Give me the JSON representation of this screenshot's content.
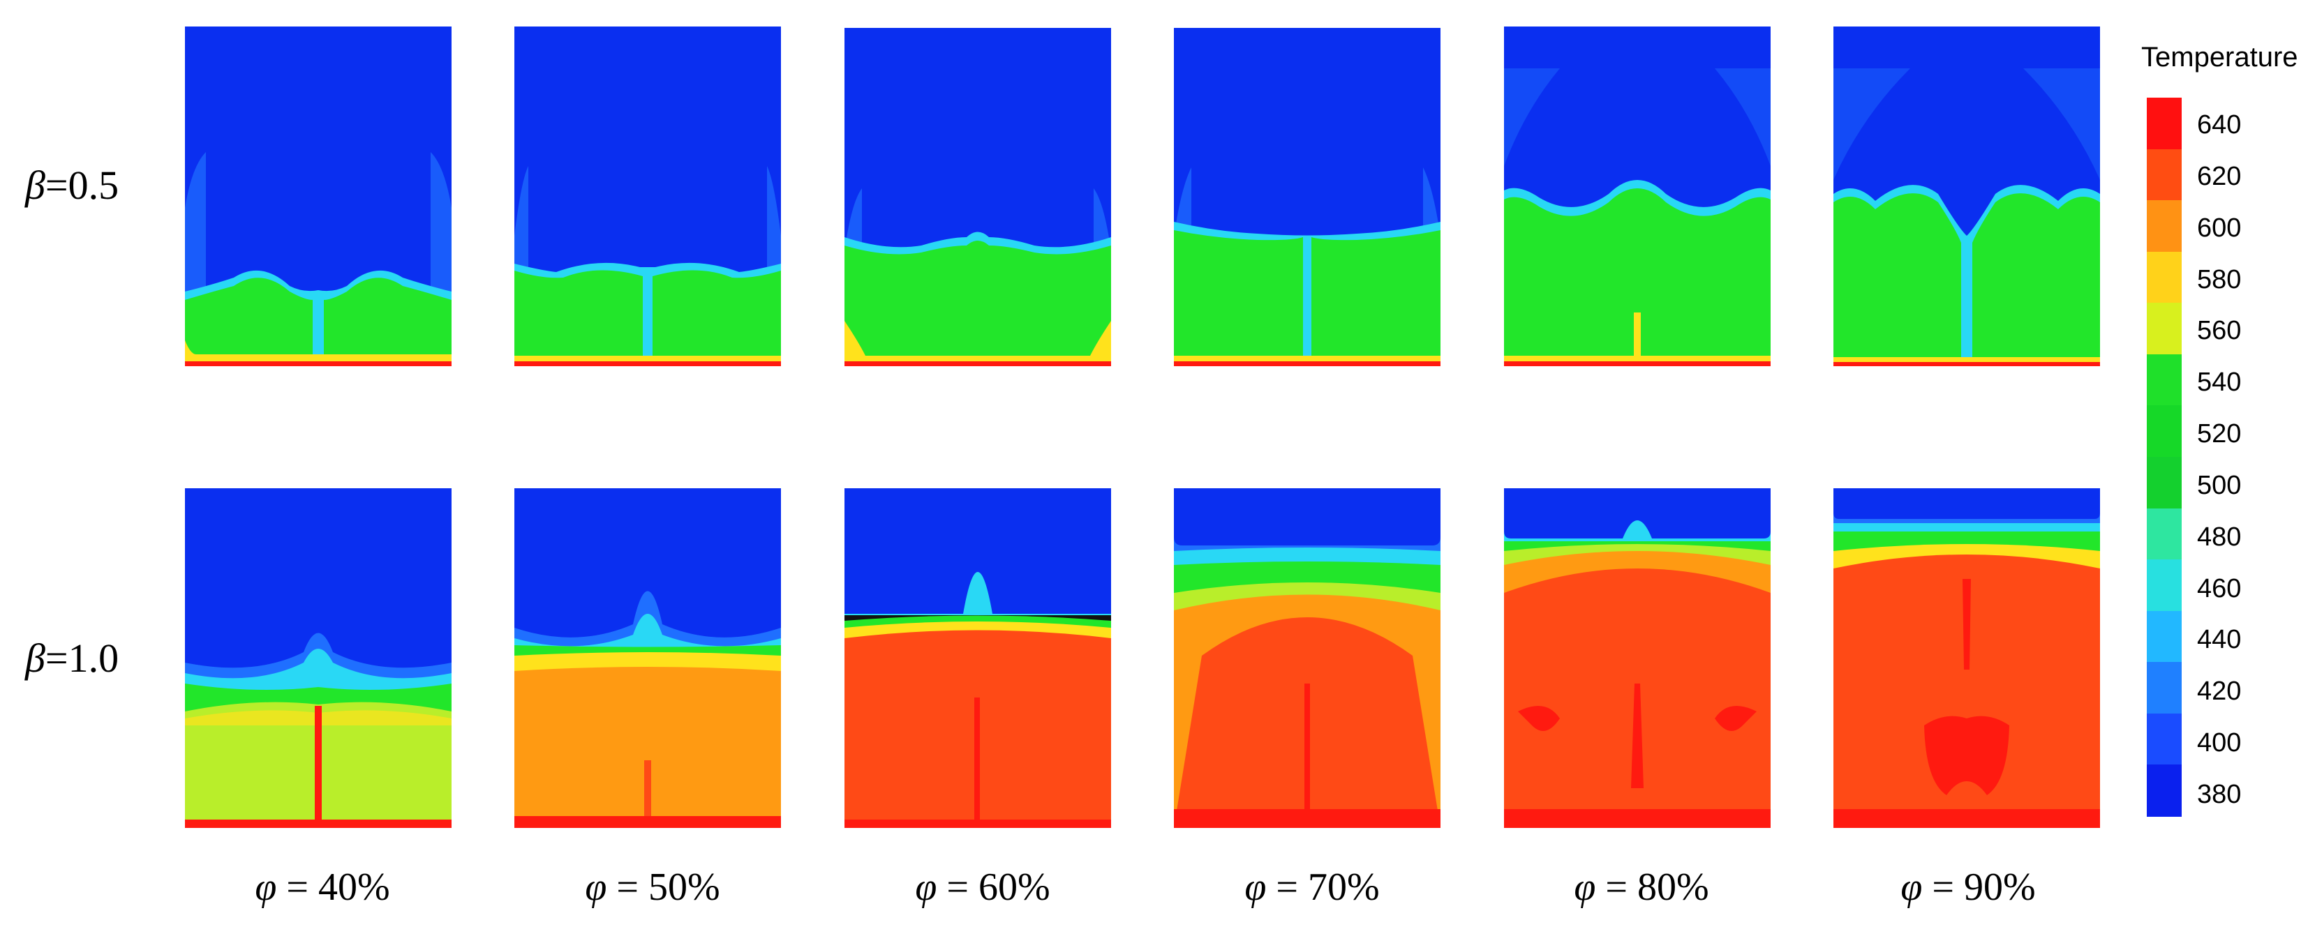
{
  "row_labels": [
    {
      "symbol": "β",
      "rest": "=0.5"
    },
    {
      "symbol": "β",
      "rest": "=1.0"
    }
  ],
  "column_labels": [
    {
      "symbol": "φ",
      "rest": " = 40%"
    },
    {
      "symbol": "φ",
      "rest": " = 50%"
    },
    {
      "symbol": "φ",
      "rest": " = 60%"
    },
    {
      "symbol": "φ",
      "rest": " = 70%"
    },
    {
      "symbol": "φ",
      "rest": " = 80%"
    },
    {
      "symbol": "φ",
      "rest": " = 90%"
    }
  ],
  "legend": {
    "title": "Temperature",
    "ticks": [
      "640",
      "620",
      "600",
      "580",
      "560",
      "540",
      "520",
      "500",
      "480",
      "460",
      "440",
      "420",
      "400",
      "380"
    ]
  },
  "colors": {
    "cold": "#0a2ff0",
    "cool_blue": "#1f6fff",
    "cyan": "#29d8f5",
    "green": "#22e62a",
    "yellow_green": "#b9ee2a",
    "yellow": "#ffe21c",
    "orange": "#ff9a12",
    "red_orange": "#ff4a16",
    "red": "#ff1a10",
    "legend_stops": [
      "#ff1010",
      "#ff4d12",
      "#ff9214",
      "#ffd21a",
      "#d8f01e",
      "#1fe02a",
      "#16d828",
      "#14d02e",
      "#2ee6a0",
      "#28e0e0",
      "#22b8ff",
      "#1f80ff",
      "#1a4cff",
      "#0a20ee"
    ]
  }
}
